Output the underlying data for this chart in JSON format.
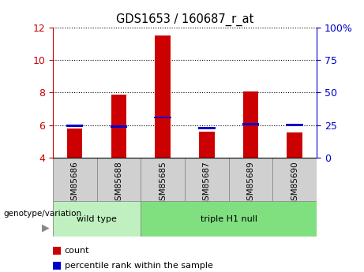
{
  "title": "GDS1653 / 160687_r_at",
  "categories": [
    "GSM85686",
    "GSM85688",
    "GSM85685",
    "GSM85687",
    "GSM85689",
    "GSM85690"
  ],
  "red_values": [
    5.8,
    7.85,
    11.5,
    5.6,
    8.05,
    5.55
  ],
  "blue_values": [
    5.9,
    5.85,
    6.4,
    5.75,
    6.0,
    5.95
  ],
  "ylim_left": [
    4,
    12
  ],
  "ylim_right": [
    0,
    100
  ],
  "yticks_left": [
    4,
    6,
    8,
    10,
    12
  ],
  "yticks_right": [
    0,
    25,
    50,
    75,
    100
  ],
  "ytick_labels_right": [
    "0",
    "25",
    "50",
    "75",
    "100%"
  ],
  "groups": [
    {
      "label": "wild type",
      "start": 0,
      "end": 2,
      "color": "#c0f0c0"
    },
    {
      "label": "triple H1 null",
      "start": 2,
      "end": 6,
      "color": "#80e080"
    }
  ],
  "group_label_prefix": "genotype/variation",
  "legend_items": [
    {
      "color": "#cc0000",
      "label": "count"
    },
    {
      "color": "#0000cc",
      "label": "percentile rank within the sample"
    }
  ],
  "bar_width": 0.35,
  "left_axis_color": "#cc0000",
  "right_axis_color": "#0000cc",
  "grid_color": "#000000",
  "cell_color": "#d0d0d0",
  "cell_edge_color": "#888888"
}
